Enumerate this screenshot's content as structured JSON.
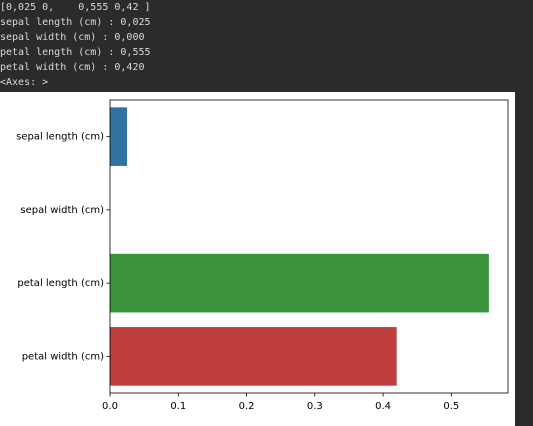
{
  "console": [
    "[0,025 0,    0,555 0,42 ]",
    "sepal length (cm) : 0,025",
    "sepal width (cm) : 0,000",
    "petal length (cm) : 0,555",
    "petal width (cm) : 0,420",
    "<Axes: >"
  ],
  "chart_data": {
    "type": "barh",
    "categories": [
      "sepal length (cm)",
      "sepal width (cm)",
      "petal length (cm)",
      "petal width (cm)"
    ],
    "values": [
      0.025,
      0.0,
      0.555,
      0.42
    ],
    "colors": [
      "#3274a1",
      "#e1812c",
      "#3a923a",
      "#c03d3e"
    ],
    "xlim": [
      0,
      0.583
    ],
    "xticks": [
      {
        "value": 0,
        "label": "0.0"
      },
      0.1,
      0.2,
      0.3,
      0.4,
      0.5
    ]
  }
}
